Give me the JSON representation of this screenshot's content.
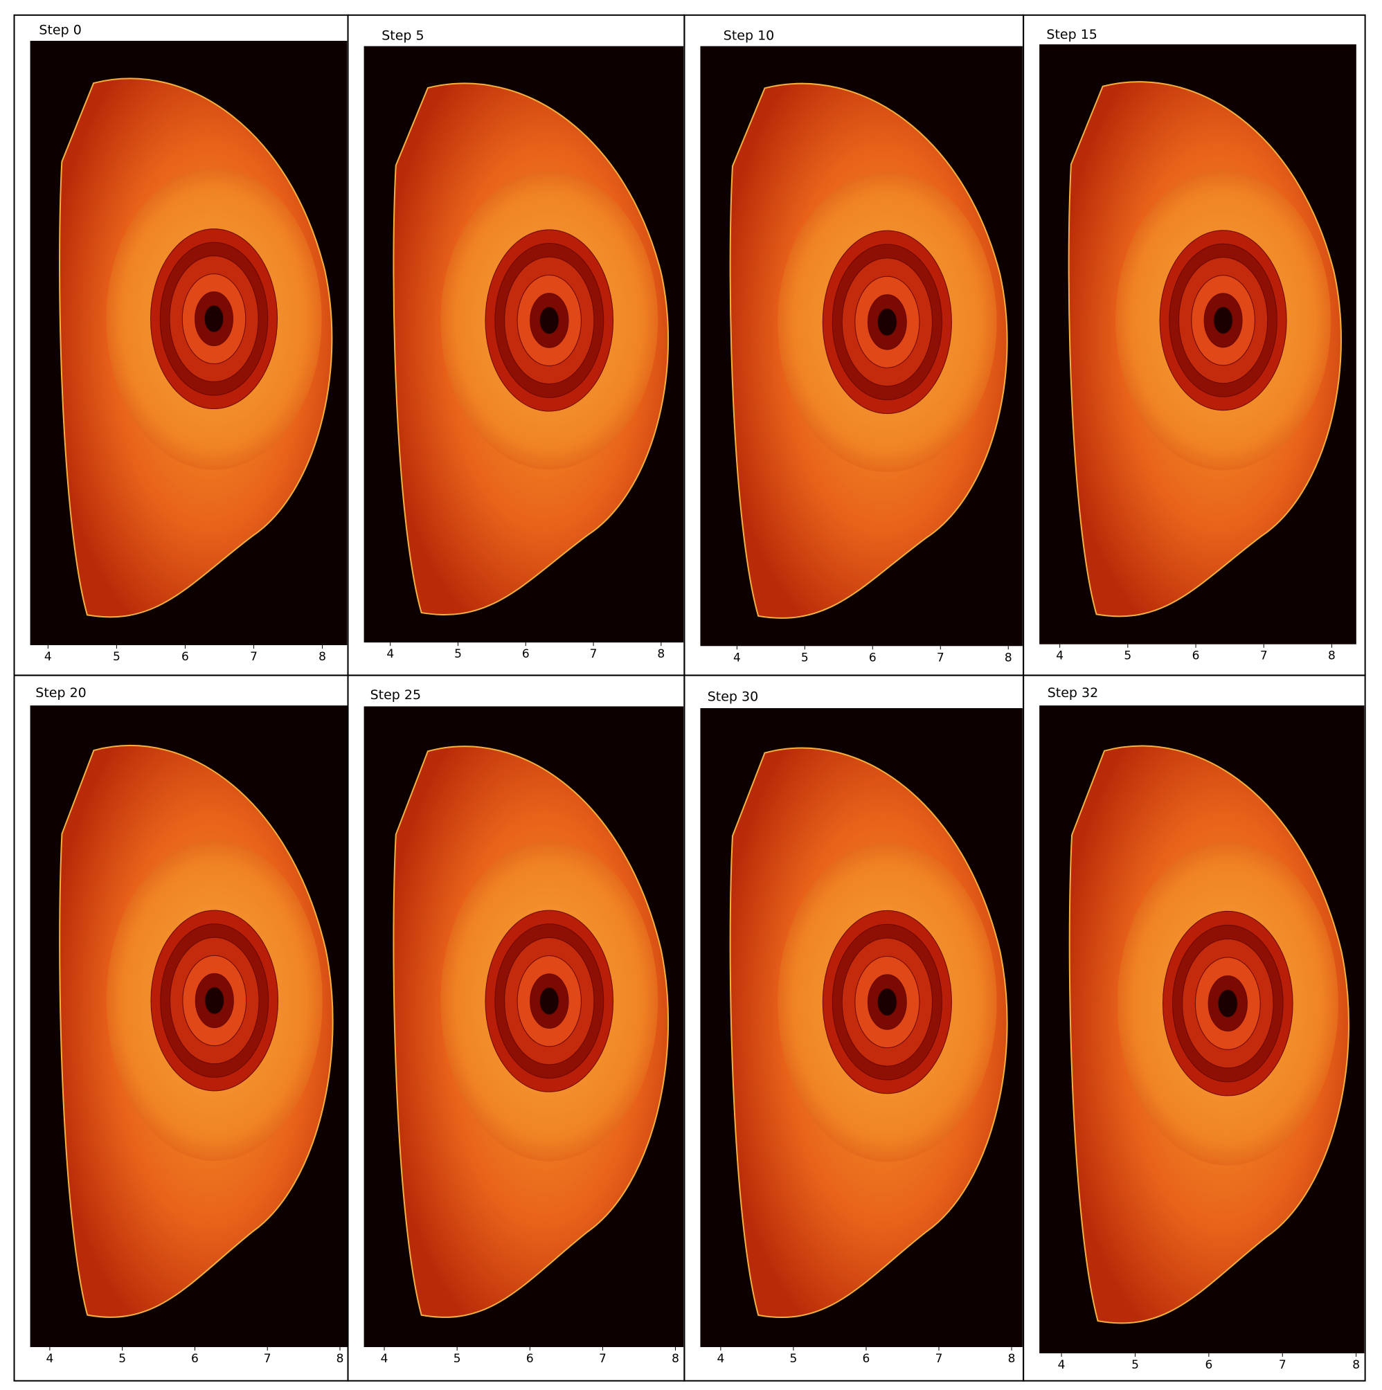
{
  "chart_data": [
    {
      "type": "image",
      "title": "Step 0",
      "xlim": [
        3.74,
        8.36
      ],
      "xticks": [
        4,
        5,
        6,
        7,
        8
      ]
    },
    {
      "type": "image",
      "title": "Step 5",
      "xlim": [
        3.61,
        8.33
      ],
      "xticks": [
        4,
        5,
        6,
        7,
        8
      ]
    },
    {
      "type": "image",
      "title": "Step 10",
      "xlim": [
        3.46,
        8.21
      ],
      "xticks": [
        4,
        5,
        6,
        7,
        8
      ]
    },
    {
      "type": "image",
      "title": "Step 15",
      "xlim": [
        3.7,
        8.36
      ],
      "xticks": [
        4,
        5,
        6,
        7,
        8
      ]
    },
    {
      "type": "image",
      "title": "Step 20",
      "xlim": [
        3.73,
        8.11
      ],
      "xticks": [
        4,
        5,
        6,
        7,
        8
      ]
    },
    {
      "type": "image",
      "title": "Step 25",
      "xlim": [
        3.72,
        8.11
      ],
      "xticks": [
        4,
        5,
        6,
        7,
        8
      ]
    },
    {
      "type": "image",
      "title": "Step 30",
      "xlim": [
        3.72,
        8.15
      ],
      "xticks": [
        4,
        5,
        6,
        7,
        8
      ]
    },
    {
      "type": "image",
      "title": "Step 32",
      "xlim": [
        3.7,
        8.11
      ],
      "xticks": [
        4,
        5,
        6,
        7,
        8
      ]
    }
  ]
}
